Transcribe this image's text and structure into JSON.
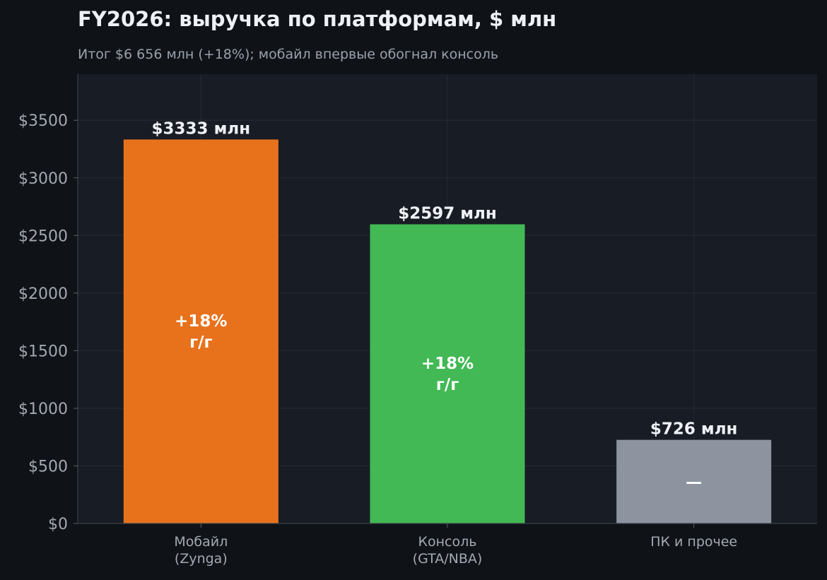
{
  "header": {
    "title": "FY2026: выручка по платформам, $ млн",
    "subtitle": "Итог $6 656 млн (+18%); мобайл впервые обогнал консоль"
  },
  "chart_data": {
    "type": "bar",
    "title": "FY2026: выручка по платформам, $ млн",
    "subtitle": "Итог $6 656 млн (+18%); мобайл впервые обогнал консоль",
    "xlabel": "",
    "ylabel": "",
    "categories": [
      [
        "Мобайл",
        "(Zynga)"
      ],
      [
        "Консоль",
        "(GTA/NBA)"
      ],
      [
        "ПК и прочее"
      ]
    ],
    "values": [
      3333,
      2597,
      726
    ],
    "value_labels": [
      "$3333 млн",
      "$2597 млн",
      "$726 млн"
    ],
    "inner_labels": [
      [
        "+18%",
        "г/г"
      ],
      [
        "+18%",
        "г/г"
      ],
      [
        "—"
      ]
    ],
    "colors": [
      "#e8721c",
      "#42b955",
      "#8d94a0"
    ],
    "ylim": [
      0,
      3900
    ],
    "yticks": [
      0,
      500,
      1000,
      1500,
      2000,
      2500,
      3000,
      3500
    ],
    "ytick_labels": [
      "$0",
      "$500",
      "$1000",
      "$1500",
      "$2000",
      "$2500",
      "$3000",
      "$3500"
    ],
    "grid": true,
    "legend": "none"
  }
}
